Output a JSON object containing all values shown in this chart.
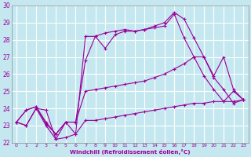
{
  "xlabel": "Windchill (Refroidissement éolien,°C)",
  "background_color": "#c5e8f0",
  "line_color": "#990099",
  "grid_color": "#ffffff",
  "xlim": [
    -0.5,
    23.5
  ],
  "ylim": [
    22,
    30
  ],
  "x_ticks": [
    0,
    1,
    2,
    3,
    4,
    5,
    6,
    7,
    8,
    9,
    10,
    11,
    12,
    13,
    14,
    15,
    16,
    17,
    18,
    19,
    20,
    21,
    22,
    23
  ],
  "y_ticks": [
    22,
    23,
    24,
    25,
    26,
    27,
    28,
    29,
    30
  ],
  "line1_x": [
    0,
    1,
    2,
    3,
    4,
    5,
    6,
    7,
    8,
    9,
    10,
    11,
    12,
    13,
    14,
    15,
    16,
    17,
    18,
    19,
    20,
    21,
    22,
    23
  ],
  "line1_y": [
    23.2,
    23.0,
    24.0,
    23.0,
    22.2,
    22.3,
    22.5,
    23.3,
    23.3,
    23.4,
    23.5,
    23.6,
    23.7,
    23.8,
    23.9,
    24.0,
    24.1,
    24.2,
    24.3,
    24.3,
    24.4,
    24.4,
    24.4,
    24.5
  ],
  "line2_x": [
    0,
    1,
    2,
    3,
    4,
    5,
    6,
    7,
    8,
    9,
    10,
    11,
    12,
    13,
    14,
    15,
    16,
    17,
    18,
    19,
    20,
    21,
    22,
    23
  ],
  "line2_y": [
    23.2,
    23.9,
    24.1,
    23.1,
    22.5,
    23.2,
    23.2,
    25.0,
    25.1,
    25.2,
    25.3,
    25.4,
    25.5,
    25.6,
    25.8,
    26.0,
    26.3,
    26.6,
    27.0,
    27.0,
    25.8,
    25.1,
    24.3,
    24.5
  ],
  "line3_x": [
    0,
    1,
    2,
    3,
    4,
    5,
    6,
    7,
    8,
    9,
    10,
    11,
    12,
    13,
    14,
    15,
    16,
    17,
    18,
    19,
    20,
    21,
    22,
    23
  ],
  "line3_y": [
    23.2,
    23.9,
    24.1,
    23.2,
    22.5,
    23.2,
    23.2,
    26.8,
    28.2,
    27.5,
    28.3,
    28.5,
    28.5,
    28.6,
    28.7,
    28.8,
    29.5,
    28.1,
    27.0,
    25.9,
    25.1,
    24.4,
    25.0,
    24.5
  ],
  "line4_x": [
    0,
    1,
    2,
    3,
    4,
    5,
    6,
    7,
    8,
    9,
    10,
    11,
    12,
    13,
    14,
    15,
    16,
    17,
    18,
    19,
    20,
    21,
    22,
    23
  ],
  "line4_y": [
    23.2,
    23.0,
    24.0,
    23.9,
    22.2,
    23.2,
    22.5,
    28.2,
    28.2,
    28.4,
    28.5,
    28.6,
    28.5,
    28.6,
    28.8,
    29.0,
    29.6,
    29.2,
    28.1,
    27.0,
    25.9,
    27.0,
    25.1,
    24.5
  ]
}
